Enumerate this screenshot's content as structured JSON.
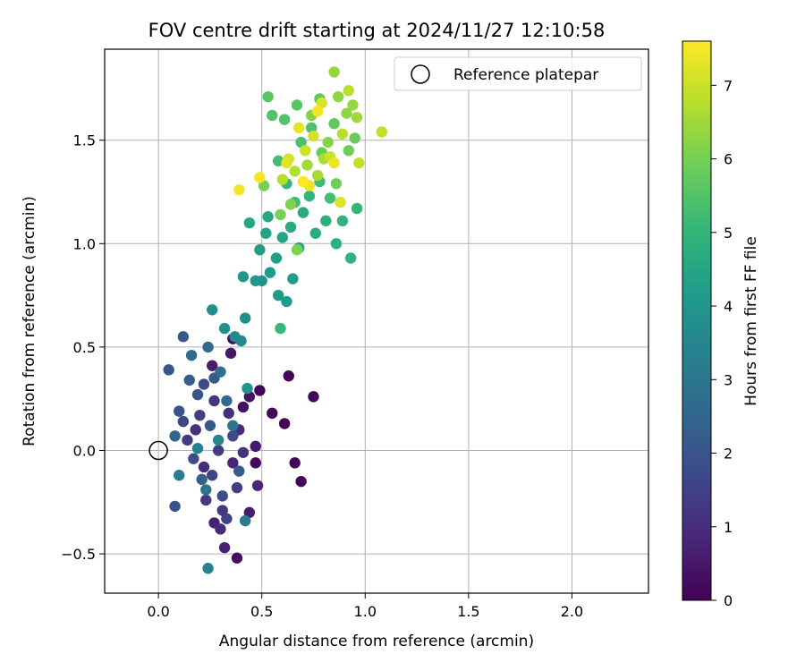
{
  "chart_data": {
    "type": "scatter",
    "title": "FOV centre drift starting at 2024/11/27 12:10:58",
    "xlabel": "Angular distance from reference (arcmin)",
    "ylabel": "Rotation from reference (arcmin)",
    "xlim": [
      -0.26,
      2.37
    ],
    "ylim": [
      -0.69,
      1.94
    ],
    "xticks": [
      0.0,
      0.5,
      1.0,
      1.5,
      2.0
    ],
    "xtick_labels": [
      "0.0",
      "0.5",
      "1.0",
      "1.5",
      "2.0"
    ],
    "yticks": [
      -0.5,
      0.0,
      0.5,
      1.0,
      1.5
    ],
    "ytick_labels": [
      "−0.5",
      "0.0",
      "0.5",
      "1.0",
      "1.5"
    ],
    "grid": true,
    "legend": {
      "position": "top-right",
      "entries": [
        "Reference platepar"
      ]
    },
    "reference_point": {
      "x": 0.0,
      "y": 0.0
    },
    "colorbar": {
      "label": "Hours from first FF file",
      "range": [
        0,
        7.6
      ],
      "ticks": [
        0,
        1,
        2,
        3,
        4,
        5,
        6,
        7
      ],
      "tick_labels": [
        "0",
        "1",
        "2",
        "3",
        "4",
        "5",
        "6",
        "7"
      ],
      "colormap": "viridis",
      "stops": [
        "#440154",
        "#482878",
        "#3e4989",
        "#31688e",
        "#26828e",
        "#1f9e89",
        "#35b779",
        "#6ece58",
        "#b5de2b",
        "#fde725"
      ]
    },
    "series": [
      {
        "points": [
          {
            "x": 0.49,
            "y": 0.29,
            "t": 0.1
          },
          {
            "x": 0.55,
            "y": 0.18,
            "t": 0.1
          },
          {
            "x": 0.61,
            "y": 0.13,
            "t": 0.1
          },
          {
            "x": 0.63,
            "y": 0.36,
            "t": 0.1
          },
          {
            "x": 0.66,
            "y": -0.06,
            "t": 0.1
          },
          {
            "x": 0.69,
            "y": -0.15,
            "t": 0.1
          },
          {
            "x": 0.75,
            "y": 0.26,
            "t": 0.1
          },
          {
            "x": 0.47,
            "y": -0.06,
            "t": 0.2
          },
          {
            "x": 0.36,
            "y": 0.54,
            "t": 0.2
          },
          {
            "x": 0.38,
            "y": -0.52,
            "t": 0.3
          },
          {
            "x": 0.41,
            "y": 0.21,
            "t": 0.3
          },
          {
            "x": 0.44,
            "y": 0.26,
            "t": 0.4
          },
          {
            "x": 0.47,
            "y": 0.02,
            "t": 0.5
          },
          {
            "x": 0.35,
            "y": 0.47,
            "t": 0.5
          },
          {
            "x": 0.26,
            "y": 0.41,
            "t": 0.6
          },
          {
            "x": 0.44,
            "y": -0.3,
            "t": 0.6
          },
          {
            "x": 0.32,
            "y": -0.47,
            "t": 0.7
          },
          {
            "x": 0.27,
            "y": -0.35,
            "t": 0.7
          },
          {
            "x": 0.48,
            "y": -0.17,
            "t": 0.8
          },
          {
            "x": 0.36,
            "y": -0.06,
            "t": 0.8
          },
          {
            "x": 0.39,
            "y": 0.1,
            "t": 0.9
          },
          {
            "x": 0.3,
            "y": -0.38,
            "t": 0.9
          },
          {
            "x": 0.34,
            "y": 0.18,
            "t": 1.0
          },
          {
            "x": 0.22,
            "y": -0.08,
            "t": 1.0
          },
          {
            "x": 0.41,
            "y": -0.01,
            "t": 1.1
          },
          {
            "x": 0.18,
            "y": 0.1,
            "t": 1.1
          },
          {
            "x": 0.27,
            "y": 0.24,
            "t": 1.2
          },
          {
            "x": 0.31,
            "y": -0.29,
            "t": 1.2
          },
          {
            "x": 0.23,
            "y": -0.24,
            "t": 1.3
          },
          {
            "x": 0.14,
            "y": 0.05,
            "t": 1.3
          },
          {
            "x": 0.38,
            "y": -0.18,
            "t": 1.4
          },
          {
            "x": 0.29,
            "y": 0.0,
            "t": 1.4
          },
          {
            "x": 0.2,
            "y": 0.17,
            "t": 1.5
          },
          {
            "x": 0.33,
            "y": -0.33,
            "t": 1.5
          },
          {
            "x": 0.26,
            "y": -0.12,
            "t": 1.6
          },
          {
            "x": 0.12,
            "y": 0.14,
            "t": 1.6
          },
          {
            "x": 0.36,
            "y": 0.07,
            "t": 1.7
          },
          {
            "x": 0.22,
            "y": 0.32,
            "t": 1.7
          },
          {
            "x": 0.17,
            "y": -0.04,
            "t": 1.8
          },
          {
            "x": 0.31,
            "y": -0.22,
            "t": 1.8
          },
          {
            "x": 0.1,
            "y": 0.19,
            "t": 1.9
          },
          {
            "x": 0.08,
            "y": -0.27,
            "t": 1.9
          },
          {
            "x": 0.05,
            "y": 0.39,
            "t": 2.0
          },
          {
            "x": 0.19,
            "y": 0.27,
            "t": 2.0
          },
          {
            "x": 0.25,
            "y": 0.12,
            "t": 2.1
          },
          {
            "x": 0.12,
            "y": 0.55,
            "t": 2.1
          },
          {
            "x": 0.39,
            "y": -0.1,
            "t": 2.2
          },
          {
            "x": 0.27,
            "y": 0.35,
            "t": 2.2
          },
          {
            "x": 0.15,
            "y": 0.34,
            "t": 2.3
          },
          {
            "x": 0.21,
            "y": -0.14,
            "t": 2.3
          },
          {
            "x": 0.08,
            "y": 0.07,
            "t": 2.4
          },
          {
            "x": 0.33,
            "y": 0.24,
            "t": 2.5
          },
          {
            "x": 0.24,
            "y": 0.5,
            "t": 2.6
          },
          {
            "x": 0.16,
            "y": 0.46,
            "t": 2.7
          },
          {
            "x": 0.3,
            "y": 0.38,
            "t": 2.8
          },
          {
            "x": 0.36,
            "y": 0.12,
            "t": 2.9
          },
          {
            "x": 0.23,
            "y": -0.19,
            "t": 3.0
          },
          {
            "x": 0.42,
            "y": -0.34,
            "t": 3.1
          },
          {
            "x": 0.1,
            "y": -0.12,
            "t": 3.2
          },
          {
            "x": 0.19,
            "y": 0.01,
            "t": 3.3
          },
          {
            "x": 0.24,
            "y": -0.57,
            "t": 3.4
          },
          {
            "x": 0.29,
            "y": 0.05,
            "t": 3.5
          },
          {
            "x": 0.37,
            "y": 0.55,
            "t": 3.6
          },
          {
            "x": 0.4,
            "y": 0.53,
            "t": 3.6
          },
          {
            "x": 0.42,
            "y": 0.64,
            "t": 3.7
          },
          {
            "x": 0.26,
            "y": 0.68,
            "t": 3.8
          },
          {
            "x": 0.32,
            "y": 0.59,
            "t": 3.8
          },
          {
            "x": 0.43,
            "y": 0.3,
            "t": 3.9
          },
          {
            "x": 0.5,
            "y": 0.82,
            "t": 3.9
          },
          {
            "x": 0.41,
            "y": 0.84,
            "t": 4.0
          },
          {
            "x": 0.47,
            "y": 0.82,
            "t": 4.0
          },
          {
            "x": 0.54,
            "y": 0.86,
            "t": 4.1
          },
          {
            "x": 0.58,
            "y": 0.75,
            "t": 4.1
          },
          {
            "x": 0.62,
            "y": 0.72,
            "t": 4.2
          },
          {
            "x": 0.65,
            "y": 0.83,
            "t": 4.2
          },
          {
            "x": 0.57,
            "y": 0.93,
            "t": 4.3
          },
          {
            "x": 0.49,
            "y": 0.97,
            "t": 4.3
          },
          {
            "x": 0.52,
            "y": 1.05,
            "t": 4.4
          },
          {
            "x": 0.6,
            "y": 1.03,
            "t": 4.4
          },
          {
            "x": 0.44,
            "y": 1.1,
            "t": 4.5
          },
          {
            "x": 0.53,
            "y": 1.13,
            "t": 4.5
          },
          {
            "x": 0.64,
            "y": 1.08,
            "t": 4.6
          },
          {
            "x": 0.7,
            "y": 1.15,
            "t": 4.6
          },
          {
            "x": 0.76,
            "y": 1.05,
            "t": 4.7
          },
          {
            "x": 0.68,
            "y": 0.98,
            "t": 4.7
          },
          {
            "x": 0.81,
            "y": 1.11,
            "t": 4.8
          },
          {
            "x": 0.86,
            "y": 1.0,
            "t": 4.8
          },
          {
            "x": 0.93,
            "y": 0.93,
            "t": 4.9
          },
          {
            "x": 0.89,
            "y": 1.11,
            "t": 4.9
          },
          {
            "x": 0.96,
            "y": 1.17,
            "t": 5.0
          },
          {
            "x": 0.73,
            "y": 1.23,
            "t": 5.0
          },
          {
            "x": 0.62,
            "y": 1.29,
            "t": 5.1
          },
          {
            "x": 0.59,
            "y": 0.59,
            "t": 5.1
          },
          {
            "x": 0.66,
            "y": 1.2,
            "t": 5.2
          },
          {
            "x": 0.78,
            "y": 1.3,
            "t": 5.2
          },
          {
            "x": 0.83,
            "y": 1.22,
            "t": 5.3
          },
          {
            "x": 0.58,
            "y": 1.4,
            "t": 5.3
          },
          {
            "x": 0.69,
            "y": 1.49,
            "t": 5.4
          },
          {
            "x": 0.74,
            "y": 1.56,
            "t": 5.4
          },
          {
            "x": 0.61,
            "y": 1.6,
            "t": 5.5
          },
          {
            "x": 0.55,
            "y": 1.62,
            "t": 5.5
          },
          {
            "x": 0.53,
            "y": 1.71,
            "t": 5.6
          },
          {
            "x": 0.67,
            "y": 1.67,
            "t": 5.6
          },
          {
            "x": 0.78,
            "y": 1.7,
            "t": 5.7
          },
          {
            "x": 0.85,
            "y": 1.58,
            "t": 5.7
          },
          {
            "x": 0.95,
            "y": 1.51,
            "t": 5.8
          },
          {
            "x": 0.79,
            "y": 1.44,
            "t": 5.8
          },
          {
            "x": 0.86,
            "y": 1.29,
            "t": 5.9
          },
          {
            "x": 0.92,
            "y": 1.45,
            "t": 5.9
          },
          {
            "x": 0.59,
            "y": 1.14,
            "t": 6.0
          },
          {
            "x": 0.51,
            "y": 1.28,
            "t": 6.0
          },
          {
            "x": 0.64,
            "y": 1.19,
            "t": 6.1
          },
          {
            "x": 0.67,
            "y": 0.97,
            "t": 6.1
          },
          {
            "x": 0.74,
            "y": 1.62,
            "t": 6.2
          },
          {
            "x": 0.82,
            "y": 1.49,
            "t": 6.2
          },
          {
            "x": 0.87,
            "y": 1.71,
            "t": 6.3
          },
          {
            "x": 0.91,
            "y": 1.63,
            "t": 6.3
          },
          {
            "x": 0.85,
            "y": 1.83,
            "t": 6.4
          },
          {
            "x": 0.94,
            "y": 1.67,
            "t": 6.4
          },
          {
            "x": 0.96,
            "y": 1.61,
            "t": 6.5
          },
          {
            "x": 0.72,
            "y": 1.38,
            "t": 6.5
          },
          {
            "x": 0.77,
            "y": 1.33,
            "t": 6.6
          },
          {
            "x": 0.8,
            "y": 1.41,
            "t": 6.6
          },
          {
            "x": 0.66,
            "y": 1.35,
            "t": 6.7
          },
          {
            "x": 0.6,
            "y": 1.31,
            "t": 6.7
          },
          {
            "x": 0.89,
            "y": 1.53,
            "t": 6.8
          },
          {
            "x": 0.92,
            "y": 1.74,
            "t": 6.8
          },
          {
            "x": 0.97,
            "y": 1.39,
            "t": 6.9
          },
          {
            "x": 1.08,
            "y": 1.54,
            "t": 6.9
          },
          {
            "x": 0.83,
            "y": 1.42,
            "t": 7.0
          },
          {
            "x": 0.71,
            "y": 1.45,
            "t": 7.0
          },
          {
            "x": 0.75,
            "y": 1.52,
            "t": 7.1
          },
          {
            "x": 0.63,
            "y": 1.41,
            "t": 7.1
          },
          {
            "x": 0.88,
            "y": 1.2,
            "t": 7.2
          },
          {
            "x": 0.79,
            "y": 1.68,
            "t": 7.2
          },
          {
            "x": 0.68,
            "y": 1.56,
            "t": 7.3
          },
          {
            "x": 0.62,
            "y": 1.39,
            "t": 7.3
          },
          {
            "x": 0.85,
            "y": 1.39,
            "t": 7.4
          },
          {
            "x": 0.73,
            "y": 1.28,
            "t": 7.4
          },
          {
            "x": 0.49,
            "y": 1.32,
            "t": 7.5
          },
          {
            "x": 0.39,
            "y": 1.26,
            "t": 7.5
          },
          {
            "x": 0.77,
            "y": 1.64,
            "t": 7.5
          },
          {
            "x": 0.7,
            "y": 1.3,
            "t": 7.6
          }
        ]
      }
    ]
  }
}
